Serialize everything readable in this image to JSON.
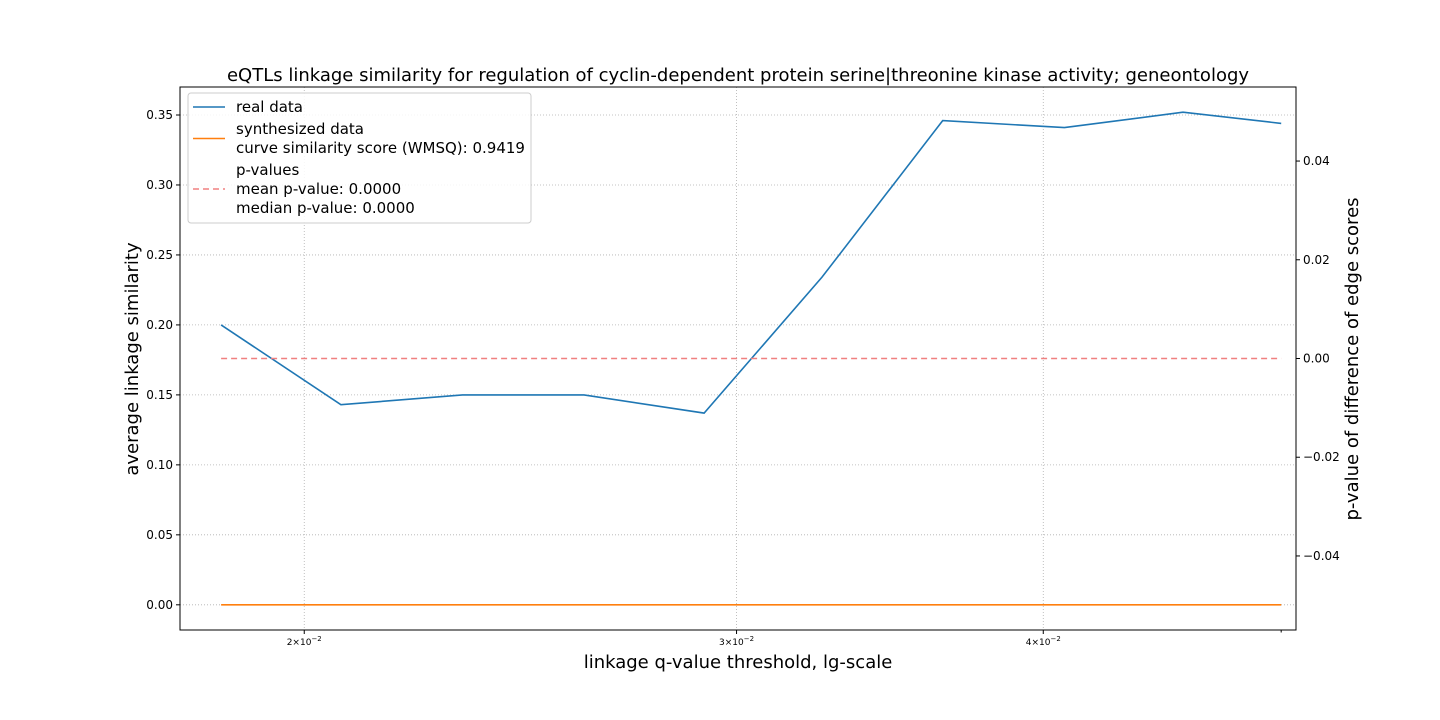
{
  "chart_data": {
    "type": "line",
    "title": "eQTLs linkage similarity for regulation of cyclin-dependent protein serine|threonine kinase activity; geneontology",
    "xlabel": "linkage q-value threshold, lg-scale",
    "ylabel": "average linkage similarity",
    "y2label": "p-value of difference of edge scores",
    "xscale": "log",
    "xlim": [
      0.0178,
      0.0507
    ],
    "ylim": [
      -0.018,
      0.37
    ],
    "y2lim": [
      -0.055,
      0.055
    ],
    "grid": true,
    "legend_position": "top-left",
    "x_tick_labels": [
      {
        "value": 0.02,
        "base": "2×10",
        "exp": "−2"
      },
      {
        "value": 0.03,
        "base": "3×10",
        "exp": "−2"
      },
      {
        "value": 0.04,
        "base": "4×10",
        "exp": "−2"
      }
    ],
    "y_ticks": [
      0.0,
      0.05,
      0.1,
      0.15,
      0.2,
      0.25,
      0.3,
      0.35
    ],
    "y_tick_labels": [
      "0.00",
      "0.05",
      "0.10",
      "0.15",
      "0.20",
      "0.25",
      "0.30",
      "0.35"
    ],
    "y2_ticks": [
      -0.04,
      -0.02,
      0.0,
      0.02,
      0.04
    ],
    "y2_tick_labels": [
      "−0.04",
      "−0.02",
      "0.00",
      "0.02",
      "0.04"
    ],
    "x": [
      0.0185,
      0.0207,
      0.0232,
      0.026,
      0.0291,
      0.0325,
      0.0364,
      0.0408,
      0.0456,
      0.05
    ],
    "series": [
      {
        "name": "real data",
        "axis": "left",
        "color": "#1f77b4",
        "values": [
          0.2,
          0.143,
          0.15,
          0.15,
          0.137,
          0.234,
          0.346,
          0.341,
          0.352,
          0.344
        ]
      },
      {
        "name": "synthesized data",
        "axis": "left",
        "color": "#ff7f0e",
        "values": [
          0,
          0,
          0,
          0,
          0,
          0,
          0,
          0,
          0,
          0
        ]
      },
      {
        "name": "p-values",
        "axis": "right",
        "color": "#f08080",
        "dashed": true,
        "values": [
          0,
          0,
          0,
          0,
          0,
          0,
          0,
          0,
          0,
          0
        ]
      }
    ],
    "legend": [
      {
        "lines": [
          "real data"
        ],
        "color": "#1f77b4",
        "dashed": false
      },
      {
        "lines": [
          "synthesized data",
          "curve similarity score (WMSQ): 0.9419"
        ],
        "color": "#ff7f0e",
        "dashed": false
      },
      {
        "lines": [
          "p-values",
          "mean p-value: 0.0000",
          "median p-value: 0.0000"
        ],
        "color": "#f08080",
        "dashed": true
      }
    ]
  }
}
